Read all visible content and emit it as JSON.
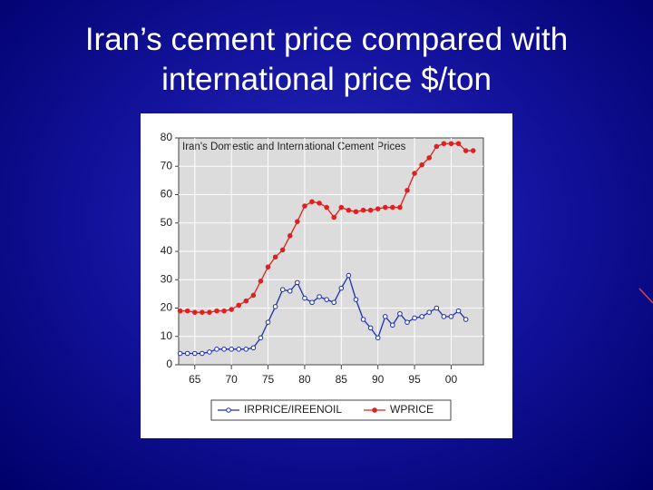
{
  "title": "Iran’s cement price compared with international price $/ton",
  "chart_data": {
    "type": "line",
    "title": "Iran's Domestic and International Cement Prices",
    "x": [
      1963,
      1964,
      1965,
      1966,
      1967,
      1968,
      1969,
      1970,
      1971,
      1972,
      1973,
      1974,
      1975,
      1976,
      1977,
      1978,
      1979,
      1980,
      1981,
      1982,
      1983,
      1984,
      1985,
      1986,
      1987,
      1988,
      1989,
      1990,
      1991,
      1992,
      1993,
      1994,
      1995,
      1996,
      1997,
      1998,
      1999,
      2000,
      2001,
      2002,
      2003
    ],
    "series": [
      {
        "name": "IRPRICE/IREENOIL",
        "color": "#1f2fb0",
        "marker": "hollow",
        "values": [
          4,
          4,
          4,
          4,
          4.5,
          5.5,
          5.5,
          5.5,
          5.5,
          5.5,
          6,
          9.5,
          15,
          20.5,
          26.5,
          26,
          29,
          23.5,
          22,
          24,
          23,
          22,
          27,
          31.5,
          23,
          16,
          13,
          9.5,
          17,
          14,
          18,
          15,
          16.5,
          17,
          18.5,
          20,
          17,
          17,
          19,
          16,
          null
        ]
      },
      {
        "name": "WPRICE",
        "color": "#e02020",
        "marker": "filled",
        "values": [
          19,
          19,
          18.5,
          18.5,
          18.5,
          19,
          19,
          19.5,
          21,
          22.5,
          24.5,
          29.5,
          34.5,
          38,
          40.5,
          45.5,
          50.5,
          56,
          57.5,
          57,
          55.5,
          52,
          55.5,
          54.5,
          54,
          54.5,
          54.5,
          55,
          55.5,
          55.5,
          55.5,
          61.5,
          67.5,
          70.5,
          73,
          77,
          78,
          78,
          78,
          75.5,
          75.5
        ]
      }
    ],
    "xlim": [
      1962.8,
      2004.4
    ],
    "xticks": [
      {
        "value": 1965,
        "label": "65"
      },
      {
        "value": 1970,
        "label": "70"
      },
      {
        "value": 1975,
        "label": "75"
      },
      {
        "value": 1980,
        "label": "80"
      },
      {
        "value": 1985,
        "label": "85"
      },
      {
        "value": 1990,
        "label": "90"
      },
      {
        "value": 1995,
        "label": "95"
      },
      {
        "value": 2000,
        "label": "00"
      }
    ],
    "ylim": [
      0,
      80
    ],
    "yticks": [
      0,
      10,
      20,
      30,
      40,
      50,
      60,
      70,
      80
    ],
    "grid": true,
    "legend": "bottom"
  }
}
